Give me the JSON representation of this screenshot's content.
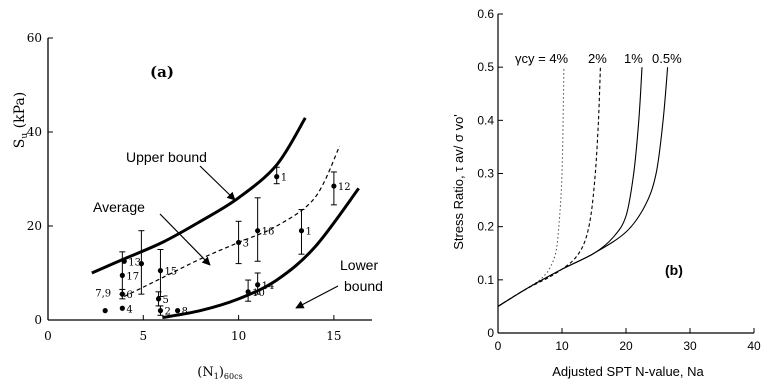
{
  "chart_data": [
    {
      "panel_label": "(a)",
      "type": "scatter",
      "ylabel": "S_u (kPa)",
      "xlabel": "(N_1)_60cs",
      "xlim": [
        0,
        17
      ],
      "ylim": [
        0,
        60
      ],
      "x_ticks": [
        0,
        5,
        10,
        15
      ],
      "y_ticks": [
        0,
        20,
        40,
        60
      ],
      "grid": false,
      "curves": [
        {
          "name": "Upper bound",
          "style": "solid-thick",
          "x": [
            2.3,
            4,
            6,
            8,
            10,
            12,
            13.5
          ],
          "y": [
            10,
            13,
            16.5,
            21,
            26,
            33,
            43
          ]
        },
        {
          "name": "Average",
          "style": "dashed",
          "x": [
            4,
            6,
            8,
            10,
            12,
            14,
            15.3
          ],
          "y": [
            5,
            9,
            13,
            16.5,
            20,
            26,
            37
          ]
        },
        {
          "name": "Lower bound",
          "style": "solid-thick",
          "x": [
            6,
            8,
            10,
            12,
            14,
            16.3
          ],
          "y": [
            0.5,
            2,
            4.5,
            8.5,
            15.5,
            28
          ]
        }
      ],
      "points": [
        {
          "label": "7,9",
          "x": 3.0,
          "y": 2.0,
          "lo": 2.0,
          "hi": 2.0
        },
        {
          "label": "4",
          "x": 3.9,
          "y": 2.5,
          "lo": 2.5,
          "hi": 2.5
        },
        {
          "label": "6",
          "x": 3.9,
          "y": 5.5,
          "lo": 4.5,
          "hi": 6.5
        },
        {
          "label": "17",
          "x": 3.9,
          "y": 9.5,
          "lo": 5.5,
          "hi": 14.5
        },
        {
          "label": "",
          "x": 4.9,
          "y": 12.0,
          "lo": 5.5,
          "hi": 19.0
        },
        {
          "label": "13",
          "x": 4.0,
          "y": 12.5,
          "lo": 12.5,
          "hi": 12.5
        },
        {
          "label": "15",
          "x": 5.9,
          "y": 10.5,
          "lo": 5.0,
          "hi": 15.0
        },
        {
          "label": "5",
          "x": 5.8,
          "y": 4.5,
          "lo": 3.0,
          "hi": 6.0
        },
        {
          "label": "2",
          "x": 5.9,
          "y": 2.0,
          "lo": 1.0,
          "hi": 3.0
        },
        {
          "label": "8",
          "x": 6.8,
          "y": 2.0,
          "lo": 2.0,
          "hi": 2.0
        },
        {
          "label": "3",
          "x": 10.0,
          "y": 16.5,
          "lo": 12.0,
          "hi": 21.0
        },
        {
          "label": "16",
          "x": 11.0,
          "y": 19.0,
          "lo": 12.5,
          "hi": 26.0
        },
        {
          "label": "10",
          "x": 10.5,
          "y": 6.0,
          "lo": 4.0,
          "hi": 8.5
        },
        {
          "label": "14",
          "x": 11.0,
          "y": 7.5,
          "lo": 5.5,
          "hi": 10.0
        },
        {
          "label": "1",
          "x": 12.0,
          "y": 30.5,
          "lo": 29.0,
          "hi": 32.5
        },
        {
          "label": "1",
          "x": 13.3,
          "y": 19.0,
          "lo": 14.0,
          "hi": 23.5
        },
        {
          "label": "12",
          "x": 15.0,
          "y": 28.5,
          "lo": 24.5,
          "hi": 31.5
        }
      ],
      "annotations": [
        "Upper bound",
        "Average",
        "Lower bound"
      ]
    },
    {
      "panel_label": "(b)",
      "type": "line",
      "xlabel": "Adjusted SPT N-value, Na",
      "ylabel": "Stress Ratio, τ av/ σ vo'",
      "xlim": [
        0,
        40
      ],
      "ylim": [
        0,
        0.6
      ],
      "x_ticks": [
        0,
        10,
        20,
        30,
        40
      ],
      "y_ticks": [
        0,
        0.1,
        0.2,
        0.3,
        0.4,
        0.5,
        0.6
      ],
      "grid": false,
      "series_title": "γcy = 4%",
      "series": [
        {
          "name": "4%",
          "style": "dotted",
          "x": [
            0,
            2,
            4,
            6,
            7,
            8,
            9,
            9.5,
            10,
            10.3
          ],
          "y": [
            0.05,
            0.065,
            0.08,
            0.095,
            0.105,
            0.12,
            0.15,
            0.2,
            0.3,
            0.5
          ]
        },
        {
          "name": "2%",
          "style": "dashed",
          "x": [
            0,
            4,
            8,
            10,
            12,
            13.5,
            14.5,
            15.2,
            15.7,
            16
          ],
          "y": [
            0.05,
            0.08,
            0.105,
            0.12,
            0.14,
            0.17,
            0.22,
            0.3,
            0.4,
            0.5
          ]
        },
        {
          "name": "1%",
          "style": "solid",
          "x": [
            0,
            5,
            10,
            15,
            18,
            20,
            21.2,
            22,
            22.5
          ],
          "y": [
            0.05,
            0.087,
            0.12,
            0.15,
            0.18,
            0.22,
            0.3,
            0.4,
            0.5
          ]
        },
        {
          "name": "0.5%",
          "style": "solid",
          "x": [
            0,
            5,
            10,
            15,
            20,
            23,
            24.7,
            25.8,
            26.5
          ],
          "y": [
            0.05,
            0.087,
            0.12,
            0.15,
            0.19,
            0.24,
            0.3,
            0.4,
            0.5
          ]
        }
      ],
      "curve_labels": [
        "2%",
        "1%",
        "0.5%"
      ]
    }
  ]
}
